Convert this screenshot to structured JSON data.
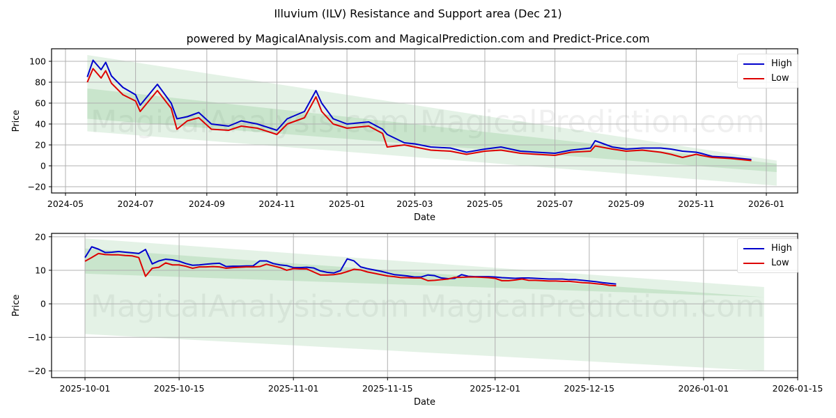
{
  "header": {
    "title": "Illuvium (ILV) Resistance and Support area (Dec 21)",
    "subtitle": "powered by MagicalAnalysis.com and MagicalPrediction.com and Predict-Price.com"
  },
  "watermarks": [
    "MagicalAnalysis.com",
    "MagicalPrediction.com"
  ],
  "colors": {
    "high": "#0000cc",
    "low": "#dd0000",
    "band": "#2e9b3a"
  },
  "chart_data": [
    {
      "type": "line",
      "title": "Illuvium (ILV) Resistance and Support area (Dec 21)",
      "xlabel": "Date",
      "ylabel": "Price",
      "ylim": [
        -26,
        112
      ],
      "yticks": [
        -20,
        0,
        20,
        40,
        60,
        80,
        100
      ],
      "xticks": [
        "2024-05",
        "2024-07",
        "2024-09",
        "2024-11",
        "2025-01",
        "2025-03",
        "2025-05",
        "2025-07",
        "2025-09",
        "2025-11",
        "2026-01"
      ],
      "grid": true,
      "legend": {
        "position": "upper right",
        "entries": [
          "High",
          "Low"
        ]
      },
      "x": [
        "2024-05-20",
        "2024-05-25",
        "2024-06-01",
        "2024-06-05",
        "2024-06-10",
        "2024-06-20",
        "2024-07-01",
        "2024-07-05",
        "2024-07-20",
        "2024-08-01",
        "2024-08-06",
        "2024-08-15",
        "2024-08-25",
        "2024-09-05",
        "2024-09-20",
        "2024-10-01",
        "2024-10-15",
        "2024-11-01",
        "2024-11-10",
        "2024-11-25",
        "2024-12-05",
        "2024-12-10",
        "2024-12-20",
        "2025-01-01",
        "2025-01-20",
        "2025-02-01",
        "2025-02-05",
        "2025-02-20",
        "2025-03-01",
        "2025-03-15",
        "2025-04-01",
        "2025-04-15",
        "2025-05-01",
        "2025-05-15",
        "2025-06-01",
        "2025-06-15",
        "2025-07-01",
        "2025-07-15",
        "2025-08-01",
        "2025-08-05",
        "2025-08-20",
        "2025-09-01",
        "2025-09-15",
        "2025-10-01",
        "2025-10-10",
        "2025-10-20",
        "2025-11-01",
        "2025-11-05",
        "2025-11-15",
        "2025-12-01",
        "2025-12-19"
      ],
      "series": [
        {
          "name": "High",
          "values": [
            85,
            101,
            92,
            99,
            86,
            75,
            68,
            58,
            78,
            60,
            45,
            47,
            51,
            40,
            38,
            43,
            40,
            34,
            45,
            52,
            72,
            60,
            45,
            40,
            42,
            35,
            30,
            22,
            21,
            18,
            17,
            13,
            16,
            18,
            14,
            13,
            12,
            15,
            17,
            24,
            18,
            16,
            17,
            17,
            16,
            14,
            13,
            12,
            9,
            8,
            6
          ]
        },
        {
          "name": "Low",
          "values": [
            80,
            93,
            84,
            91,
            79,
            68,
            62,
            52,
            72,
            55,
            35,
            43,
            46,
            35,
            34,
            38,
            36,
            30,
            40,
            46,
            66,
            52,
            40,
            36,
            38,
            31,
            18,
            20,
            18,
            15,
            14,
            11,
            14,
            15,
            12,
            11,
            10,
            13,
            14,
            19,
            16,
            14,
            15,
            13,
            11,
            8,
            11,
            10,
            8,
            7,
            5
          ]
        }
      ],
      "bands": [
        {
          "name": "outer",
          "start": {
            "date": "2024-05-20",
            "upper": 106,
            "lower": 33
          },
          "end": {
            "date": "2026-01-10",
            "upper": 5,
            "lower": -19
          }
        },
        {
          "name": "inner",
          "start": {
            "date": "2024-05-20",
            "upper": 74,
            "lower": 45
          },
          "end": {
            "date": "2026-01-10",
            "upper": 2,
            "lower": -6
          }
        }
      ]
    },
    {
      "type": "line",
      "xlabel": "Date",
      "ylabel": "Price",
      "ylim": [
        -22,
        21
      ],
      "yticks": [
        -20,
        -10,
        0,
        10,
        20
      ],
      "xticks": [
        "2025-10-01",
        "2025-10-15",
        "2025-11-01",
        "2025-11-15",
        "2025-12-01",
        "2025-12-15",
        "2026-01-01",
        "2026-01-15"
      ],
      "grid": true,
      "legend": {
        "position": "upper right",
        "entries": [
          "High",
          "Low"
        ]
      },
      "x": [
        "10-01",
        "10-02",
        "10-03",
        "10-04",
        "10-05",
        "10-06",
        "10-07",
        "10-08",
        "10-09",
        "10-10",
        "10-11",
        "10-12",
        "10-13",
        "10-14",
        "10-15",
        "10-16",
        "10-17",
        "10-18",
        "10-19",
        "10-20",
        "10-21",
        "10-22",
        "10-23",
        "10-24",
        "10-25",
        "10-26",
        "10-27",
        "10-28",
        "10-29",
        "10-30",
        "10-31",
        "11-01",
        "11-02",
        "11-03",
        "11-04",
        "11-05",
        "11-06",
        "11-07",
        "11-08",
        "11-09",
        "11-10",
        "11-11",
        "11-12",
        "11-13",
        "11-14",
        "11-15",
        "11-16",
        "11-17",
        "11-18",
        "11-19",
        "11-20",
        "11-21",
        "11-22",
        "11-23",
        "11-24",
        "11-25",
        "11-26",
        "11-27",
        "11-28",
        "11-29",
        "11-30",
        "12-01",
        "12-02",
        "12-03",
        "12-04",
        "12-05",
        "12-06",
        "12-07",
        "12-08",
        "12-09",
        "12-10",
        "12-11",
        "12-12",
        "12-13",
        "12-14",
        "12-15",
        "12-16",
        "12-17",
        "12-18",
        "12-19"
      ],
      "series": [
        {
          "name": "High",
          "values": [
            13.8,
            17.0,
            16.3,
            15.3,
            15.4,
            15.6,
            15.4,
            15.2,
            15.0,
            16.2,
            11.9,
            12.8,
            13.3,
            13.1,
            12.7,
            12.0,
            11.5,
            11.6,
            11.8,
            12.0,
            12.1,
            11.1,
            11.2,
            11.2,
            11.3,
            11.3,
            12.8,
            12.8,
            12.0,
            11.6,
            11.4,
            10.8,
            10.8,
            10.9,
            10.7,
            9.8,
            9.4,
            9.2,
            9.9,
            13.4,
            12.8,
            11.0,
            10.5,
            10.1,
            9.7,
            9.2,
            8.7,
            8.5,
            8.3,
            8.0,
            8.0,
            8.6,
            8.4,
            7.7,
            7.5,
            7.6,
            8.7,
            8.2,
            8.1,
            8.1,
            8.1,
            8.0,
            7.8,
            7.7,
            7.6,
            7.7,
            7.7,
            7.6,
            7.5,
            7.4,
            7.4,
            7.4,
            7.2,
            7.2,
            7.0,
            6.8,
            6.6,
            6.3,
            6.1,
            5.9
          ]
        },
        {
          "name": "Low",
          "values": [
            12.7,
            13.8,
            15.0,
            14.7,
            14.6,
            14.6,
            14.4,
            14.3,
            13.8,
            8.2,
            10.6,
            10.9,
            12.2,
            11.6,
            11.6,
            11.2,
            10.6,
            11.0,
            11.0,
            11.1,
            11.0,
            10.6,
            10.8,
            10.9,
            11.0,
            11.0,
            11.1,
            11.8,
            11.3,
            10.8,
            10.0,
            10.5,
            10.4,
            10.4,
            9.5,
            8.6,
            8.6,
            8.7,
            9.0,
            9.6,
            10.3,
            10.1,
            9.5,
            9.1,
            8.7,
            8.3,
            8.1,
            7.8,
            7.8,
            7.7,
            7.7,
            6.9,
            7.0,
            7.2,
            7.4,
            7.9,
            7.9,
            8.0,
            8.0,
            7.9,
            7.8,
            7.6,
            6.9,
            6.9,
            7.1,
            7.4,
            7.0,
            7.0,
            6.9,
            6.8,
            6.8,
            6.7,
            6.7,
            6.5,
            6.3,
            6.2,
            6.0,
            5.8,
            5.5,
            5.4
          ]
        }
      ],
      "bands": [
        {
          "name": "outer",
          "start": {
            "date": "2025-10-01",
            "upper": 19.5,
            "lower": -9
          },
          "end": {
            "date": "2026-01-10",
            "upper": 5,
            "lower": -20
          }
        },
        {
          "name": "inner",
          "start": {
            "date": "2025-10-01",
            "upper": 16.5,
            "lower": 9
          },
          "end": {
            "date": "2026-01-10",
            "upper": 2,
            "lower": 2
          }
        }
      ]
    }
  ]
}
